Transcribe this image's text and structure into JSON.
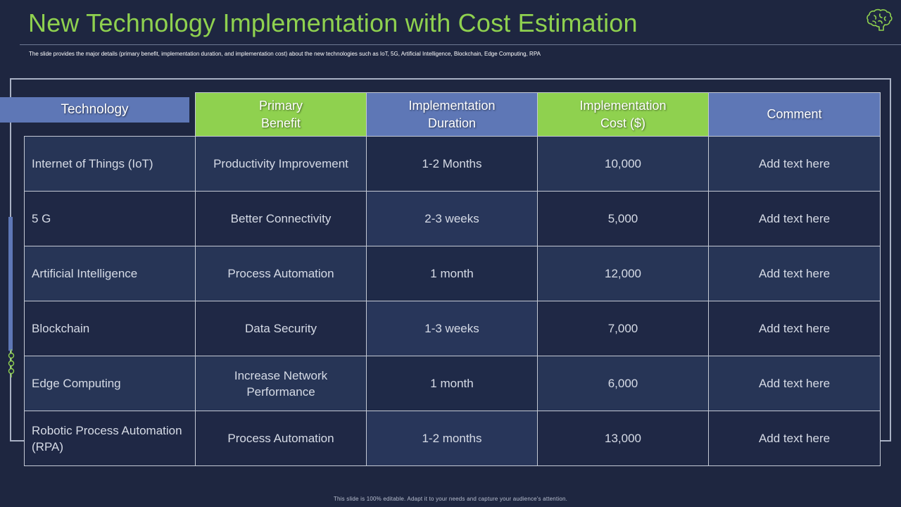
{
  "title": "New Technology Implementation with Cost Estimation",
  "subtitle": "The slide provides the major details (primary benefit, implementation duration, and implementation cost) about the new technologies such as IoT, 5G, Artificial Intelligence, Blockchain, Edge Computing, RPA",
  "icon": "brain-icon",
  "colors": {
    "accent_green": "#8fd14f",
    "accent_blue": "#5e77b6",
    "background": "#1e2640"
  },
  "table": {
    "headers": {
      "technology": "Technology",
      "primary_benefit": [
        "Primary",
        "Benefit"
      ],
      "duration": [
        "Implementation",
        "Duration"
      ],
      "cost": [
        "Implementation",
        "Cost ($)"
      ],
      "comment": "Comment"
    },
    "rows": [
      {
        "technology": "Internet of Things (IoT)",
        "benefit": "Productivity Improvement",
        "duration": "1-2 Months",
        "cost": "10,000",
        "comment": "Add text here"
      },
      {
        "technology": "5 G",
        "benefit": "Better Connectivity",
        "duration": "2-3 weeks",
        "cost": "5,000",
        "comment": "Add text here"
      },
      {
        "technology": "Artificial Intelligence",
        "benefit": "Process Automation",
        "duration": "1 month",
        "cost": "12,000",
        "comment": "Add text here"
      },
      {
        "technology": "Blockchain",
        "benefit": "Data Security",
        "duration": "1-3 weeks",
        "cost": "7,000",
        "comment": "Add text here"
      },
      {
        "technology": "Edge Computing",
        "benefit": "Increase Network Performance",
        "duration": "1 month",
        "cost": "6,000",
        "comment": "Add text here"
      },
      {
        "technology": "Robotic Process Automation (RPA)",
        "benefit": "Process Automation",
        "duration": "1-2 months",
        "cost": "13,000",
        "comment": "Add text here"
      }
    ]
  },
  "footer": "This slide is 100% editable. Adapt it to your needs and capture your audience's attention."
}
